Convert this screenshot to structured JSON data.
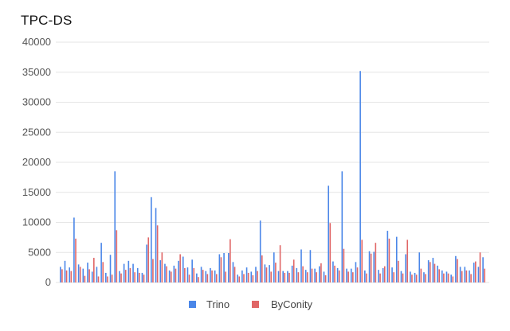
{
  "chart_data": {
    "type": "bar",
    "title": "TPC-DS",
    "xlabel": "",
    "ylabel": "",
    "ylim": [
      0,
      40000
    ],
    "yticks": [
      0,
      5000,
      10000,
      15000,
      20000,
      25000,
      30000,
      35000,
      40000
    ],
    "ytick_labels": [
      "0",
      "5000",
      "10000",
      "15000",
      "20000",
      "25000",
      "30000",
      "35000",
      "40000"
    ],
    "grid": true,
    "legend_position": "bottom-center",
    "series": [
      {
        "name": "Trino",
        "color": "#4a86e8",
        "values": [
          2600,
          3600,
          2500,
          10800,
          3000,
          2300,
          3300,
          1800,
          2600,
          6600,
          1600,
          4600,
          18500,
          1900,
          3100,
          3600,
          3100,
          2400,
          1600,
          6300,
          14200,
          12400,
          3700,
          3100,
          2000,
          2800,
          3600,
          4300,
          2500,
          3800,
          1500,
          2600,
          1900,
          2400,
          2000,
          4700,
          4900,
          4900,
          3400,
          1300,
          2000,
          2500,
          1800,
          2600,
          10300,
          3000,
          2900,
          5000,
          1900,
          1900,
          1900,
          2800,
          2400,
          5500,
          2100,
          5400,
          2300,
          2700,
          1800,
          16100,
          3500,
          2400,
          18500,
          2300,
          2300,
          3400,
          35200,
          2000,
          5200,
          5100,
          2100,
          2400,
          8600,
          2500,
          7600,
          1900,
          4700,
          1800,
          1600,
          5000,
          1700,
          3700,
          4100,
          2800,
          2000,
          1800,
          1300,
          4400,
          2600,
          2600,
          2000,
          3300,
          2600,
          4200
        ]
      },
      {
        "name": "ByConity",
        "color": "#e06666",
        "values": [
          2200,
          2000,
          1900,
          7300,
          2600,
          1100,
          2200,
          4100,
          1000,
          3400,
          1000,
          1300,
          8700,
          1500,
          2100,
          2400,
          1700,
          1600,
          1300,
          7500,
          3900,
          9500,
          5000,
          2700,
          1800,
          2300,
          4700,
          2400,
          1300,
          2400,
          900,
          2100,
          1400,
          2000,
          1400,
          4200,
          1800,
          7200,
          2600,
          1000,
          1400,
          1600,
          1200,
          1900,
          4500,
          2500,
          1800,
          3300,
          6200,
          1600,
          1600,
          3800,
          1700,
          2700,
          1700,
          2300,
          1700,
          3200,
          1200,
          9900,
          2800,
          2000,
          5600,
          1800,
          1700,
          2500,
          7100,
          1500,
          4800,
          6600,
          1500,
          2700,
          7300,
          1700,
          3600,
          1500,
          7100,
          1300,
          1300,
          2300,
          1400,
          3400,
          3100,
          2200,
          1500,
          1500,
          1000,
          3900,
          1900,
          2000,
          1400,
          3500,
          5000,
          2300
        ]
      }
    ]
  }
}
